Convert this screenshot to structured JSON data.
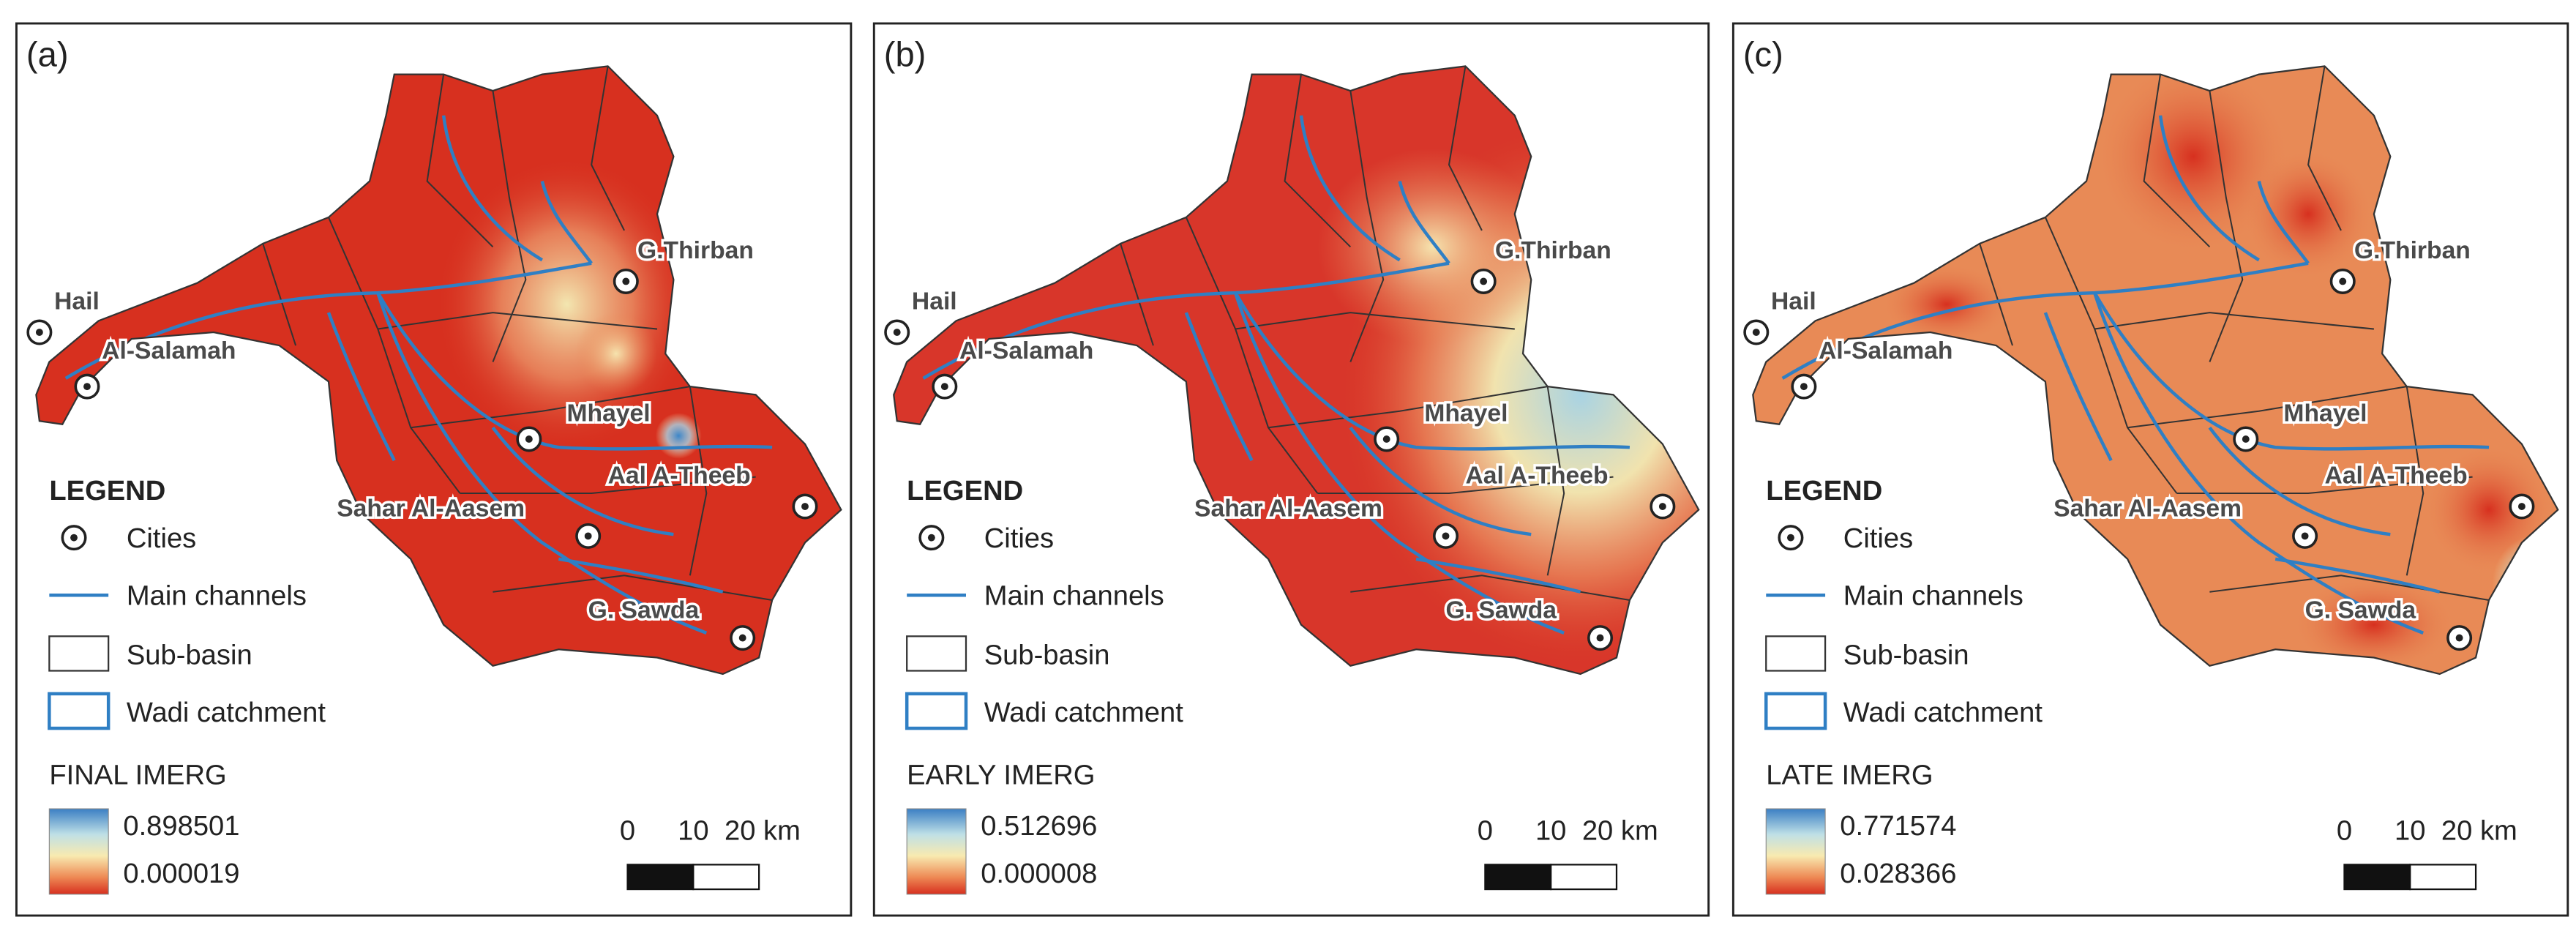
{
  "panels": [
    {
      "label": "(a)",
      "cities": [
        "Hail",
        "Al-Salamah",
        "G.Thirban",
        "Mhayel",
        "Aal A-Theeb",
        "Sahar Al-Aasem",
        "G. Sawda"
      ],
      "legend": {
        "title": "LEGEND",
        "items": [
          "Cities",
          "Main channels",
          "Sub-basin",
          "Wadi catchment"
        ]
      },
      "product": "FINAL IMERG",
      "max": "0.898501",
      "min": "0.000019",
      "scale": [
        "0",
        "10",
        "20 km"
      ]
    },
    {
      "label": "(b)",
      "cities": [
        "Hail",
        "Al-Salamah",
        "G.Thirban",
        "Mhayel",
        "Aal A-Theeb",
        "Sahar Al-Aasem",
        "G. Sawda"
      ],
      "legend": {
        "title": "LEGEND",
        "items": [
          "Cities",
          "Main channels",
          "Sub-basin",
          "Wadi catchment"
        ]
      },
      "product": "EARLY IMERG",
      "max": "0.512696",
      "min": "0.000008",
      "scale": [
        "0",
        "10",
        "20 km"
      ]
    },
    {
      "label": "(c)",
      "cities": [
        "Hail",
        "Al-Salamah",
        "G.Thirban",
        "Mhayel",
        "Aal A-Theeb",
        "Sahar Al-Aasem",
        "G. Sawda"
      ],
      "legend": {
        "title": "LEGEND",
        "items": [
          "Cities",
          "Main channels",
          "Sub-basin",
          "Wadi catchment"
        ]
      },
      "product": "LATE IMERG",
      "max": "0.771574",
      "min": "0.028366",
      "scale": [
        "0",
        "10",
        "20 km"
      ]
    }
  ]
}
